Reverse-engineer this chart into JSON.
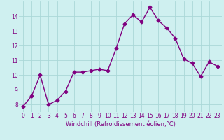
{
  "x": [
    0,
    1,
    2,
    3,
    4,
    5,
    6,
    7,
    8,
    9,
    10,
    11,
    12,
    13,
    14,
    15,
    16,
    17,
    18,
    19,
    20,
    21,
    22,
    23
  ],
  "y": [
    7.9,
    8.6,
    10.0,
    8.0,
    8.3,
    8.9,
    10.2,
    10.2,
    10.3,
    10.4,
    10.3,
    11.8,
    13.5,
    14.1,
    13.6,
    14.6,
    13.7,
    13.2,
    12.5,
    11.1,
    10.8,
    9.9,
    10.9,
    10.6
  ],
  "line_color": "#800080",
  "marker": "D",
  "marker_size": 2.5,
  "bg_color": "#cff0f0",
  "grid_color": "#aad8d8",
  "xlabel": "Windchill (Refroidissement éolien,°C)",
  "xlabel_color": "#800080",
  "tick_color": "#800080",
  "ylim": [
    7.5,
    15.0
  ],
  "xlim": [
    -0.5,
    23.5
  ],
  "yticks": [
    8,
    9,
    10,
    11,
    12,
    13,
    14
  ],
  "xticks": [
    0,
    1,
    2,
    3,
    4,
    5,
    6,
    7,
    8,
    9,
    10,
    11,
    12,
    13,
    14,
    15,
    16,
    17,
    18,
    19,
    20,
    21,
    22,
    23
  ],
  "tick_fontsize": 5.5,
  "xlabel_fontsize": 6.0,
  "linewidth": 1.0
}
